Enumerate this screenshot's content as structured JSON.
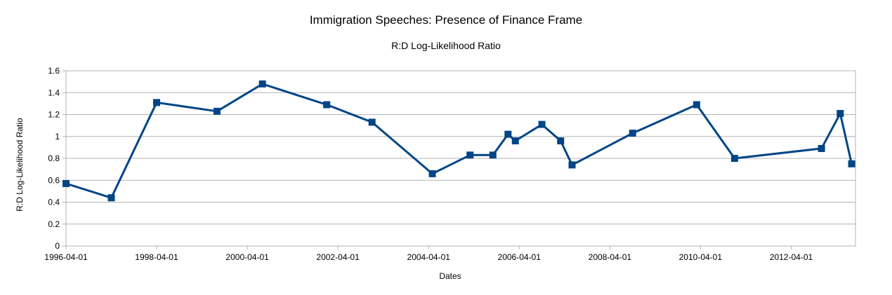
{
  "chart_data": {
    "type": "line",
    "title": "Immigration Speeches: Presence of Finance Frame",
    "subtitle": "R:D Log-Likelihood Ratio",
    "xlabel": "Dates",
    "ylabel": "R:D Log-Likelihood Ratio",
    "ylim": [
      0,
      1.6
    ],
    "y_ticks": [
      "0",
      "0.2",
      "0.4",
      "0.6",
      "0.8",
      "1",
      "1.2",
      "1.4",
      "1.6"
    ],
    "x_ticks": [
      "1996-04-01",
      "1998-04-01",
      "2000-04-01",
      "2002-04-01",
      "2004-04-01",
      "2006-04-01",
      "2008-04-01",
      "2010-04-01",
      "2012-04-01"
    ],
    "xlim": [
      "1996-04-01",
      "2013-09-01"
    ],
    "grid": "horizontal",
    "series": [
      {
        "color": "#004586",
        "marker": "square",
        "points": [
          {
            "x": "1996-04-01",
            "y": 0.57
          },
          {
            "x": "1997-04-01",
            "y": 0.44
          },
          {
            "x": "1998-04-01",
            "y": 1.31
          },
          {
            "x": "1999-08-01",
            "y": 1.23
          },
          {
            "x": "2000-08-01",
            "y": 1.48
          },
          {
            "x": "2002-01-01",
            "y": 1.29
          },
          {
            "x": "2003-01-01",
            "y": 1.13
          },
          {
            "x": "2004-05-01",
            "y": 0.66
          },
          {
            "x": "2005-03-01",
            "y": 0.83
          },
          {
            "x": "2005-09-01",
            "y": 0.83
          },
          {
            "x": "2006-01-01",
            "y": 1.02
          },
          {
            "x": "2006-03-01",
            "y": 0.96
          },
          {
            "x": "2006-10-01",
            "y": 1.11
          },
          {
            "x": "2007-03-01",
            "y": 0.96
          },
          {
            "x": "2007-06-01",
            "y": 0.74
          },
          {
            "x": "2008-10-01",
            "y": 1.03
          },
          {
            "x": "2010-03-01",
            "y": 1.29
          },
          {
            "x": "2011-01-01",
            "y": 0.8
          },
          {
            "x": "2012-12-01",
            "y": 0.89
          },
          {
            "x": "2013-05-01",
            "y": 1.21
          },
          {
            "x": "2013-08-01",
            "y": 0.75
          }
        ]
      }
    ]
  }
}
